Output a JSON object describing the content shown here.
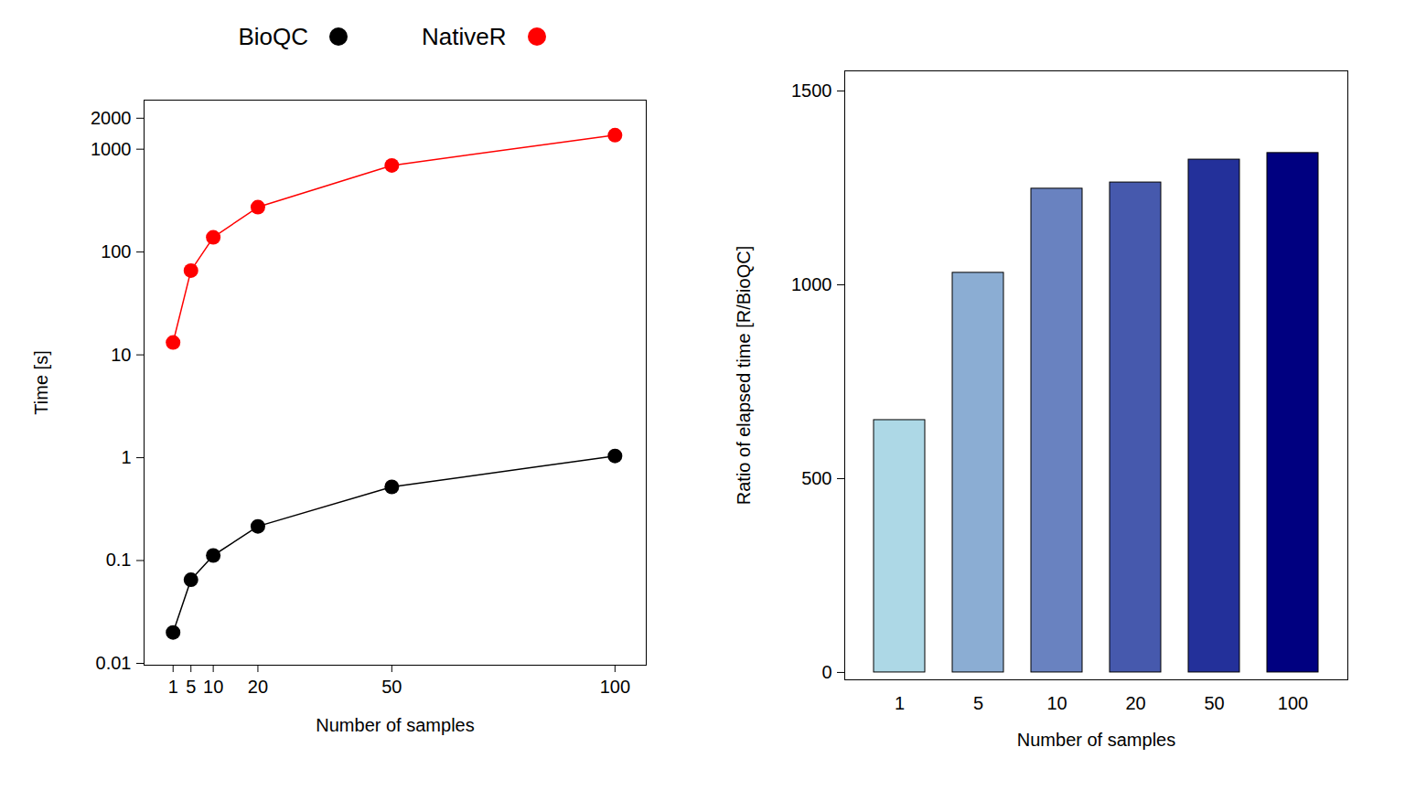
{
  "chart_data": [
    {
      "type": "line",
      "x_label": "Number of samples",
      "y_label": "Time [s]",
      "x": [
        1,
        5,
        10,
        20,
        50,
        100
      ],
      "series": [
        {
          "name": "BioQC",
          "color": "#000000",
          "marker": "circle",
          "values": [
            0.02,
            0.065,
            0.112,
            0.215,
            0.52,
            1.04
          ]
        },
        {
          "name": "NativeR",
          "color": "#ff0000",
          "marker": "circle",
          "values": [
            13.2,
            66,
            139,
            273,
            695,
            1370
          ]
        }
      ],
      "log": "y",
      "legend": "top",
      "xlim": [
        -5.5,
        107
      ],
      "xticks": [
        1,
        5,
        10,
        20,
        50,
        100
      ],
      "ylim": [
        0.0096,
        3000
      ],
      "yticks": [
        0.01,
        0.1,
        1,
        10,
        100,
        1000,
        2000
      ]
    },
    {
      "type": "bar",
      "x_label": "Number of samples",
      "y_label": "Ratio of elapsed time [R/BioQC]",
      "categories": [
        "1",
        "5",
        "10",
        "20",
        "50",
        "100"
      ],
      "values": [
        651,
        1031,
        1248,
        1264,
        1323,
        1340
      ],
      "colors": [
        "#add8e6",
        "#8badd3",
        "#6982c0",
        "#4659ad",
        "#23309a",
        "#000080"
      ],
      "ylim": [
        -19,
        1552
      ],
      "yticks": [
        0,
        500,
        1000,
        1500
      ]
    }
  ]
}
